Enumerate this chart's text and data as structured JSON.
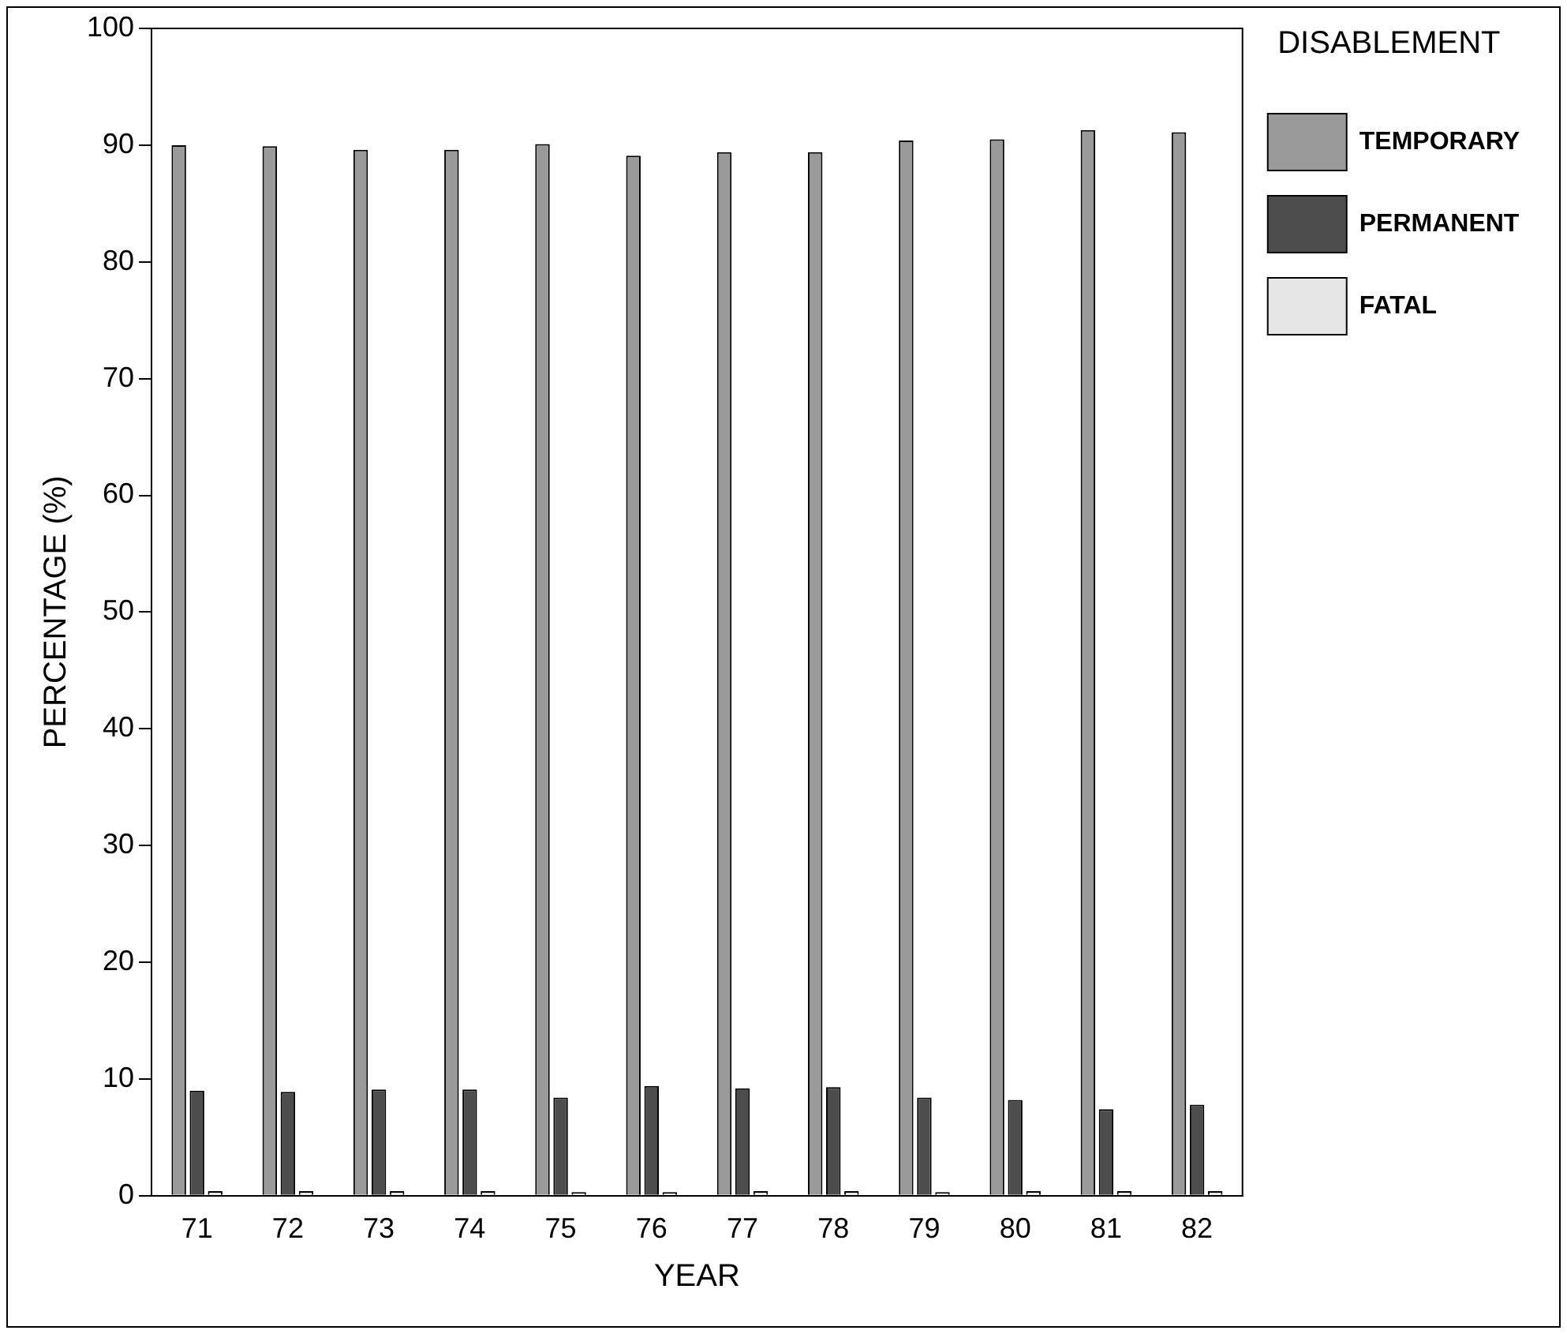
{
  "chart_data": {
    "type": "bar",
    "xlabel": "YEAR",
    "ylabel": "PERCENTAGE (%)",
    "legend_title": "DISABLEMENT",
    "categories": [
      "71",
      "72",
      "73",
      "74",
      "75",
      "76",
      "77",
      "78",
      "79",
      "80",
      "81",
      "82"
    ],
    "series": [
      {
        "name": "TEMPORARY",
        "color": "#9a9a9a",
        "values": [
          90.0,
          89.9,
          89.6,
          89.6,
          90.1,
          89.1,
          89.4,
          89.4,
          90.4,
          90.5,
          91.3,
          91.1
        ]
      },
      {
        "name": "PERMANENT",
        "color": "#4d4d4d",
        "values": [
          9.0,
          8.9,
          9.1,
          9.1,
          8.4,
          9.4,
          9.2,
          9.3,
          8.4,
          8.2,
          7.4,
          7.8
        ]
      },
      {
        "name": "FATAL",
        "color": "#e6e6e6",
        "values": [
          0.4,
          0.4,
          0.4,
          0.4,
          0.3,
          0.3,
          0.4,
          0.4,
          0.3,
          0.4,
          0.4,
          0.4
        ]
      }
    ],
    "ylim": [
      0,
      100
    ],
    "yticks": [
      0,
      10,
      20,
      30,
      40,
      50,
      60,
      70,
      80,
      90,
      100
    ],
    "grid": false,
    "legend": "top right"
  }
}
